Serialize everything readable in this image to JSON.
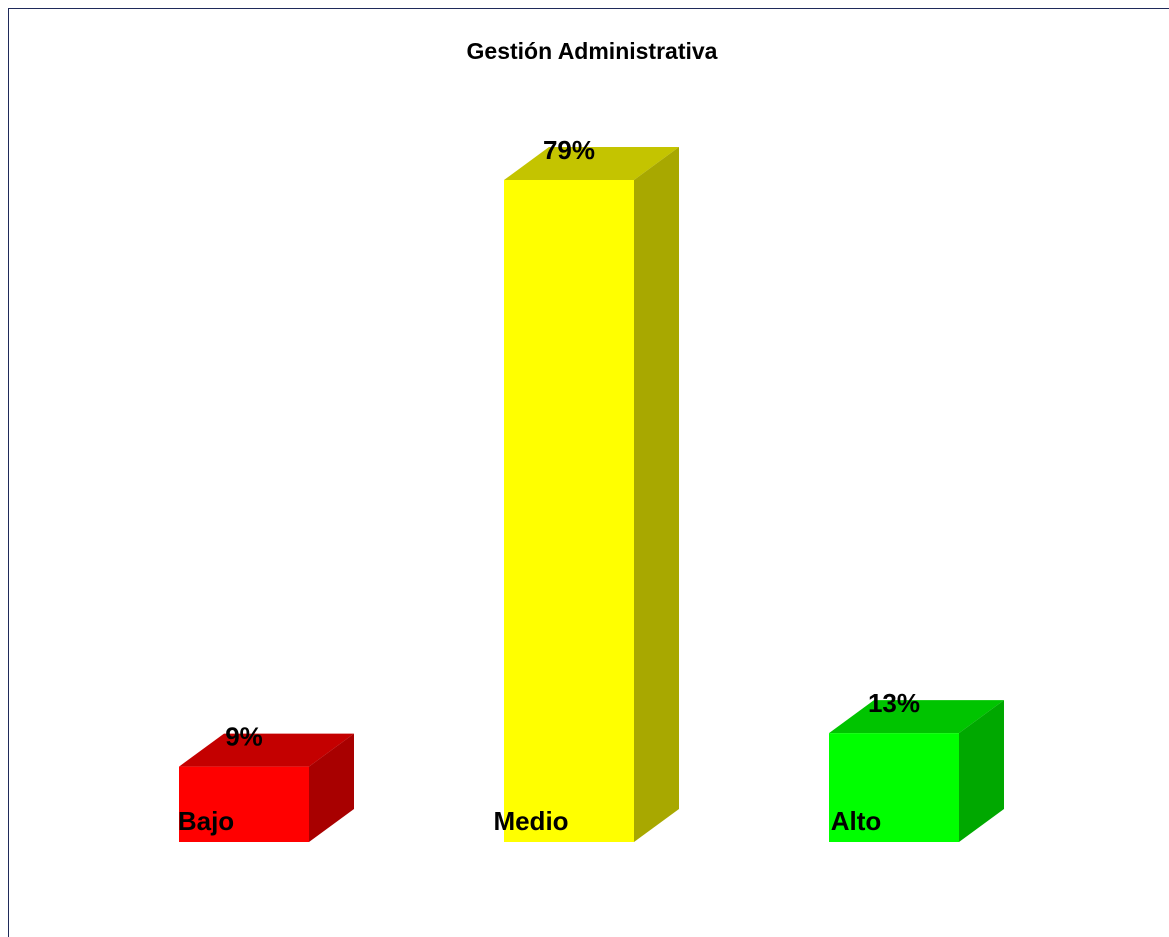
{
  "chart_data": {
    "type": "bar3d",
    "title": "Gestión Administrativa",
    "categories": [
      "Bajo",
      "Medio",
      "Alto"
    ],
    "values": [
      9,
      79,
      13
    ],
    "value_labels": [
      "9%",
      "79%",
      "13%"
    ],
    "colors": [
      "#ff0000",
      "#ffff00",
      "#00ff00"
    ]
  }
}
